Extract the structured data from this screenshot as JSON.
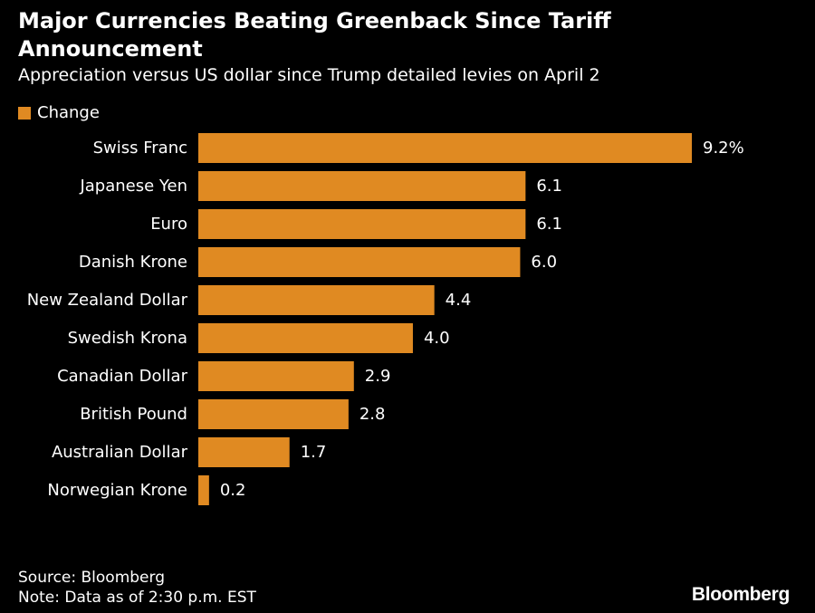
{
  "header": {
    "title": "Major Currencies Beating Greenback Since Tariff Announcement",
    "subtitle": "Appreciation versus US dollar since Trump detailed levies on April 2"
  },
  "legend": {
    "label": "Change",
    "color": "#E08A22"
  },
  "chart_data": {
    "type": "bar",
    "orientation": "horizontal",
    "categories": [
      "Swiss Franc",
      "Japanese Yen",
      "Euro",
      "Danish Krone",
      "New Zealand Dollar",
      "Swedish Krona",
      "Canadian Dollar",
      "British Pound",
      "Australian Dollar",
      "Norwegian Krone"
    ],
    "series": [
      {
        "name": "Change",
        "values": [
          9.2,
          6.1,
          6.1,
          6.0,
          4.4,
          4.0,
          2.9,
          2.8,
          1.7,
          0.2
        ],
        "color": "#E08A22"
      }
    ],
    "value_labels": [
      "9.2%",
      "6.1",
      "6.1",
      "6.0",
      "4.4",
      "4.0",
      "2.9",
      "2.8",
      "1.7",
      "0.2"
    ],
    "xlim": [
      0,
      9.2
    ],
    "grid": false,
    "legend_position": "top-left"
  },
  "footer": {
    "source": "Source: Bloomberg",
    "note": "Note: Data as of 2:30 p.m. EST"
  },
  "brand": {
    "logo_text": "Bloomberg"
  }
}
